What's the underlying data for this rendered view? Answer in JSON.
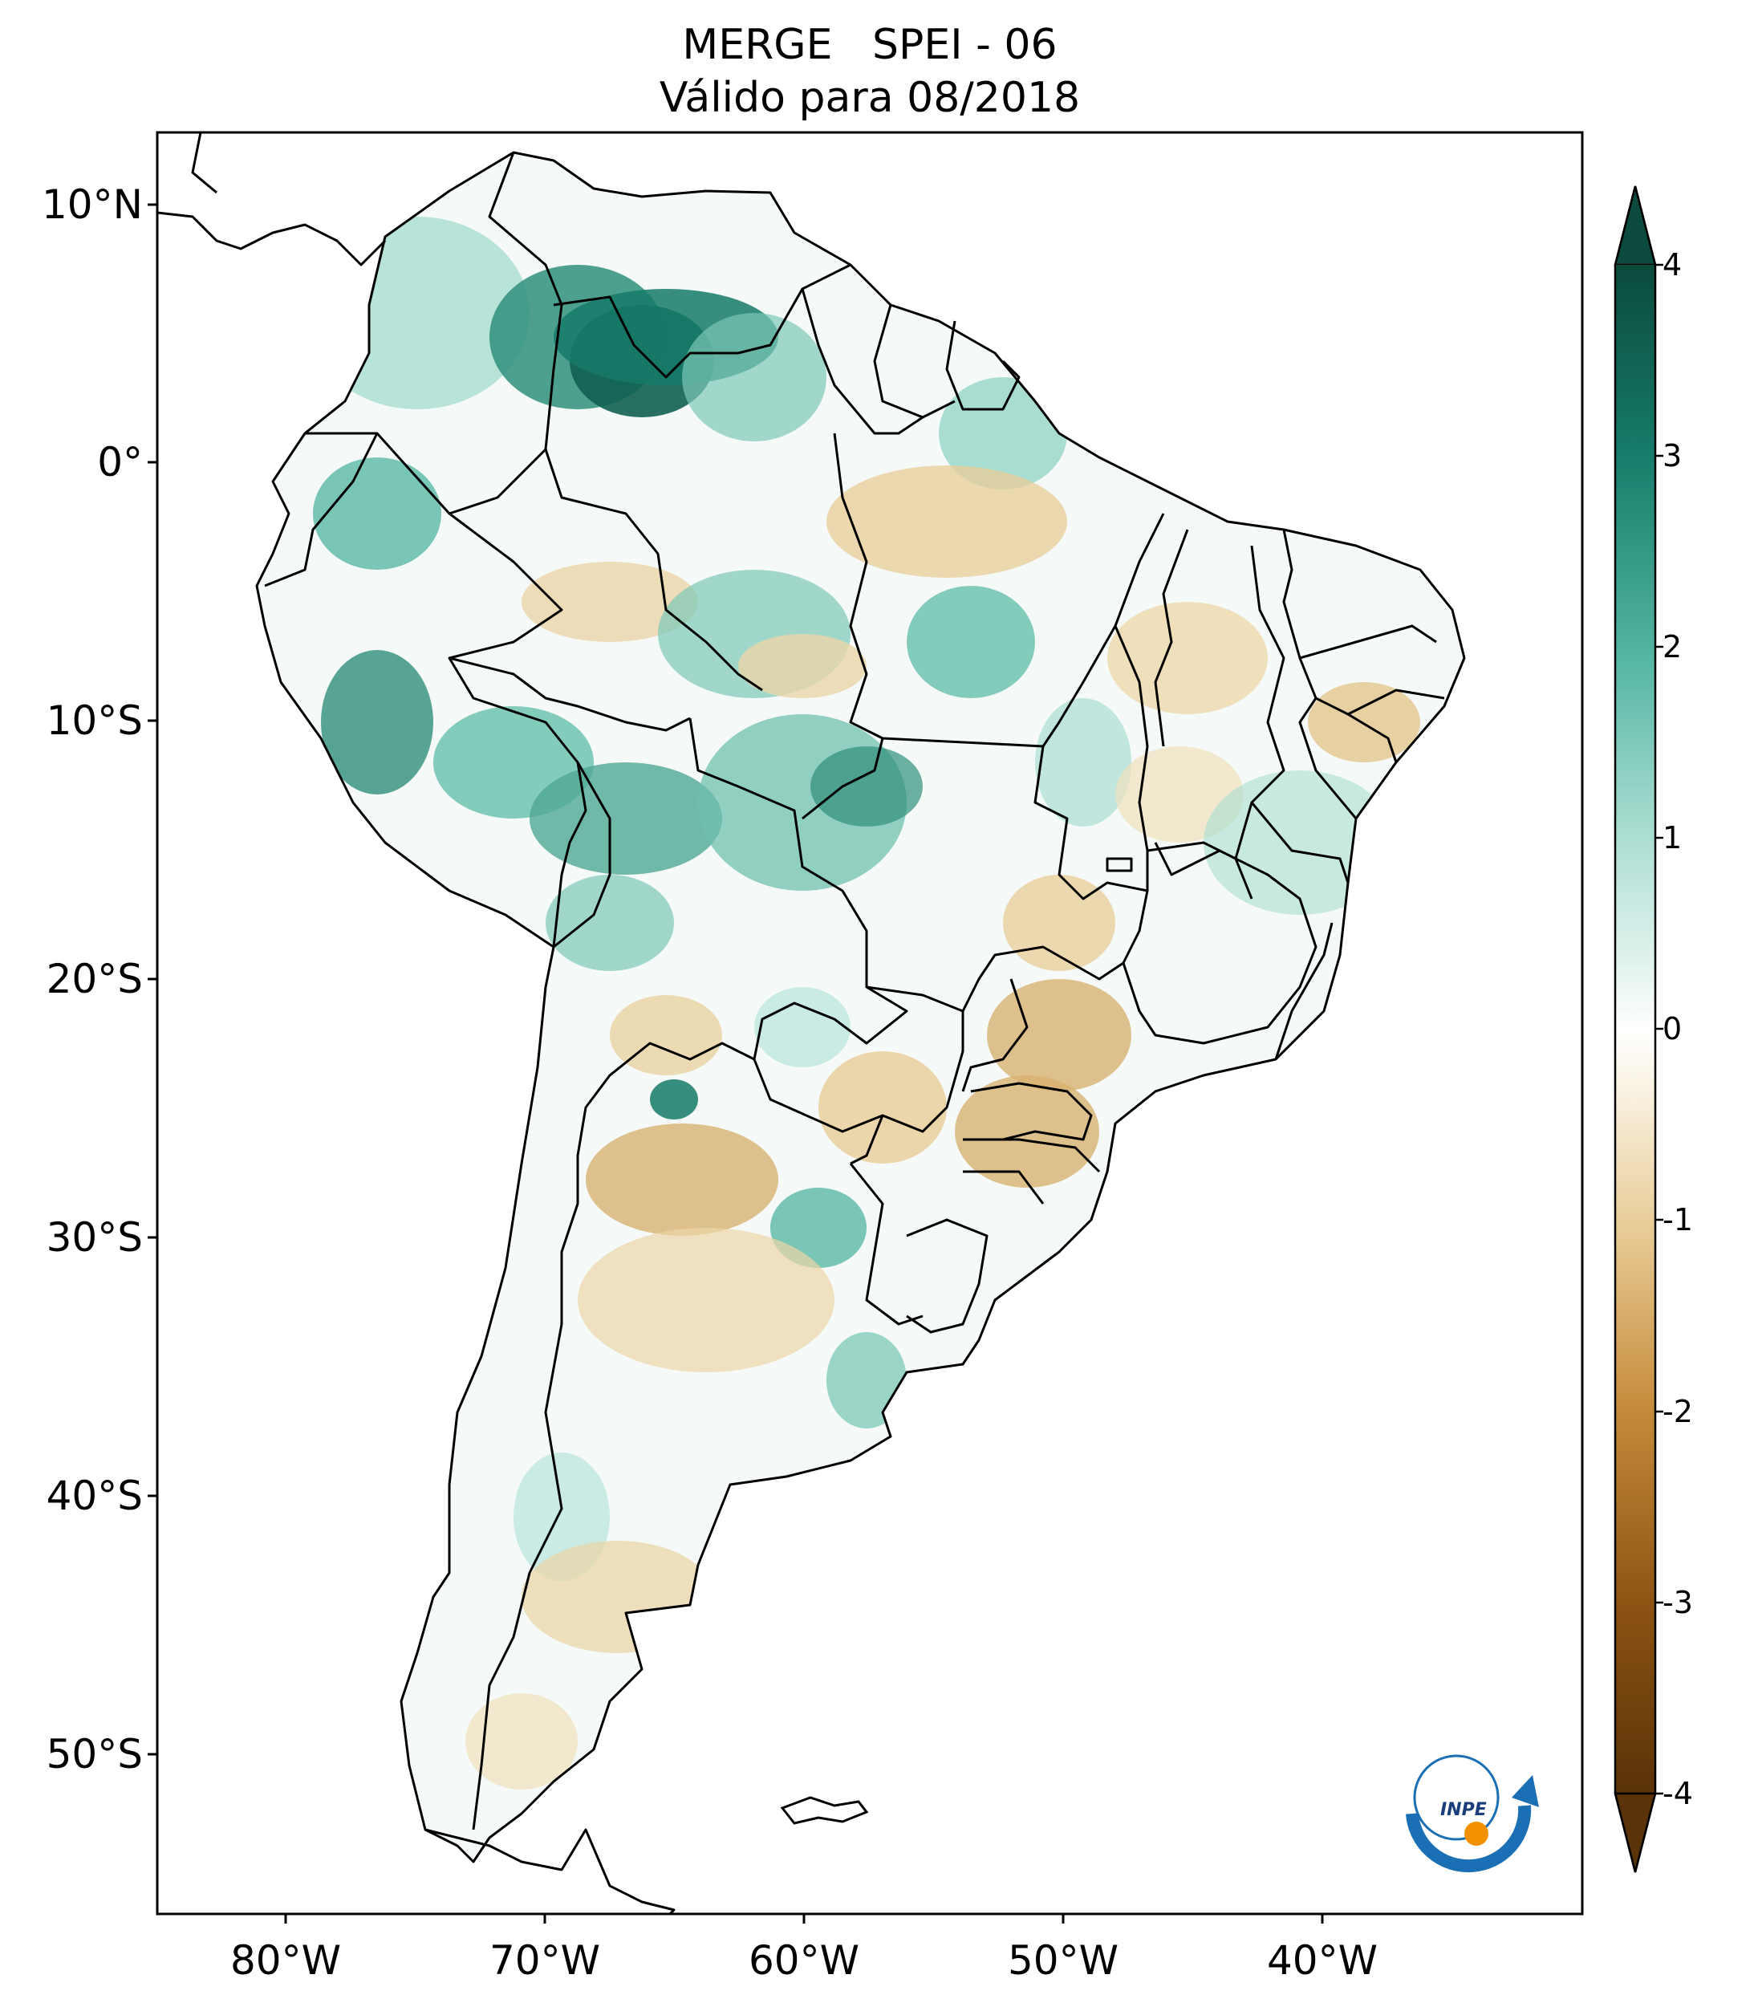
{
  "title": {
    "line1": "MERGE   SPEI - 06",
    "line2": "Válido para 08/2018"
  },
  "axes": {
    "latitude_labels": [
      "10°N",
      "0°",
      "10°S",
      "20°S",
      "30°S",
      "40°S",
      "50°S"
    ],
    "longitude_labels": [
      "80°W",
      "70°W",
      "60°W",
      "50°W",
      "40°W"
    ]
  },
  "colorbar": {
    "tick_labels": [
      "4",
      "3",
      "2",
      "1",
      "0",
      "-1",
      "-2",
      "-3",
      "-4"
    ],
    "colors": {
      "wet_max": "#0b4a3c",
      "wet_strong": "#167a68",
      "wet_mid": "#4fb3a0",
      "wet_light": "#b7e4da",
      "neutral": "#ffffff",
      "dry_light": "#f1e1bd",
      "dry_mid": "#d8b270",
      "dry_strong": "#a8671c",
      "dry_max": "#5a3308"
    }
  },
  "logo": {
    "text": "INPE",
    "colors": {
      "arc": "#1a6fb5",
      "dot": "#f39200"
    }
  }
}
